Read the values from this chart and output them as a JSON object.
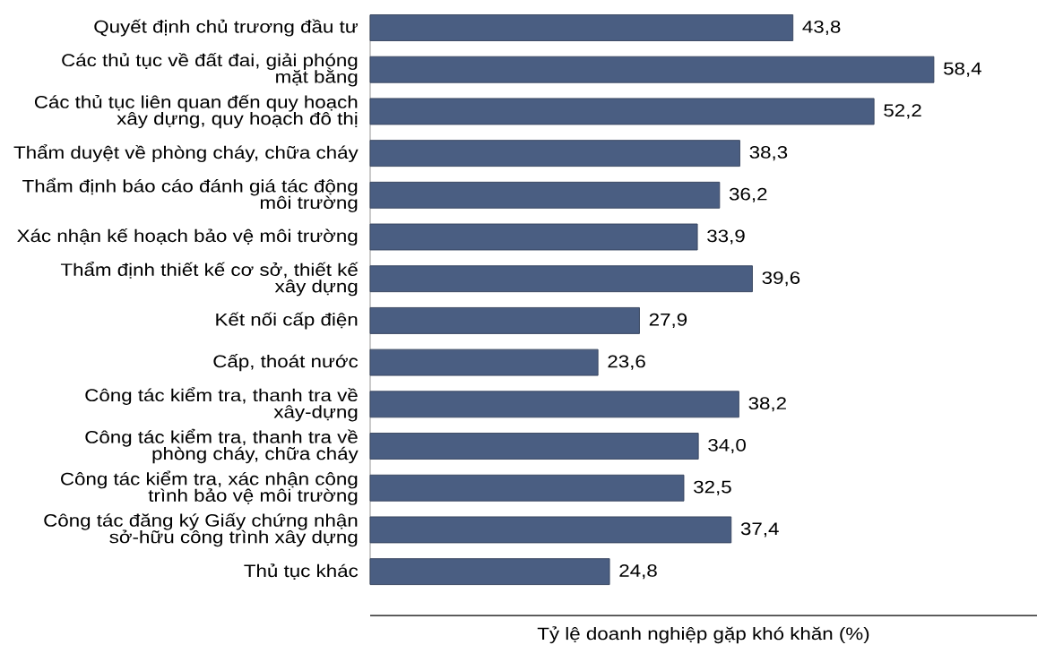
{
  "chart_data": {
    "type": "bar",
    "orientation": "horizontal",
    "xlabel": "Tỷ lệ doanh nghiệp gặp khó khăn (%)",
    "categories": [
      "Quyết định chủ trương đầu tư",
      "Các thủ tục về đất đai, giải phóng mặt bằng",
      "Các thủ tục liên quan đến quy hoạch xây dựng, quy hoạch đô thị",
      "Thẩm duyệt về phòng cháy, chữa cháy",
      "Thẩm định báo cáo đánh giá tác động môi trường",
      "Xác nhận kế hoạch bảo vệ môi trường",
      "Thẩm định thiết kế cơ sở, thiết kế xây dựng",
      "Kết nối cấp điện",
      "Cấp, thoát nước",
      "Công tác kiểm tra, thanh tra về xây-dựng",
      "Công tác kiểm tra, thanh tra về phòng cháy, chữa cháy",
      "Công tác kiểm tra, xác nhận công trình bảo vệ môi trường",
      "Công tác đăng ký Giấy chứng nhận sở-hữu công trình xây dựng",
      "Thủ tục khác"
    ],
    "values": [
      43.8,
      58.4,
      52.2,
      38.3,
      36.2,
      33.9,
      39.6,
      27.9,
      23.6,
      38.2,
      34.0,
      32.5,
      37.4,
      24.8
    ],
    "value_labels": [
      "43,8",
      "58,4",
      "52,2",
      "38,3",
      "36,2",
      "33,9",
      "39,6",
      "27,9",
      "23,6",
      "38,2",
      "34,0",
      "32,5",
      "37,4",
      "24,8"
    ],
    "color": "#4a5e82"
  }
}
